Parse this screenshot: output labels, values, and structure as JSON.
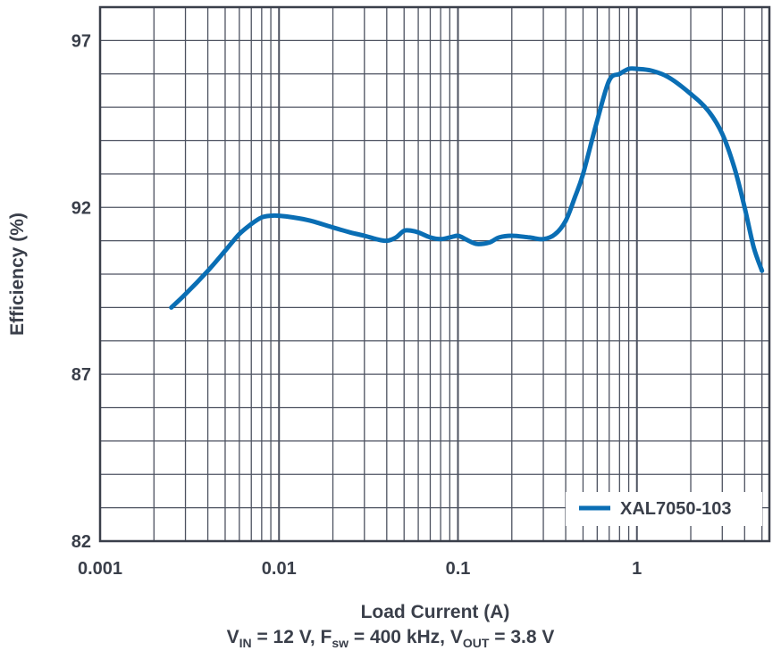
{
  "chart_data": {
    "type": "line",
    "xscale": "log",
    "xlim": [
      0.001,
      5.5
    ],
    "ylim": [
      82,
      98
    ],
    "xticks": [
      "0.001",
      "0.01",
      "0.1",
      "1"
    ],
    "yticks": [
      "82",
      "87",
      "92",
      "97"
    ],
    "xlabel": "Load Current (A)",
    "ylabel": "Efficiency (%)",
    "grid": true,
    "legend_position": "bottom-right",
    "series": [
      {
        "name": "XAL7050-103",
        "color": "#0a6eb4",
        "x": [
          0.0025,
          0.003,
          0.004,
          0.005,
          0.006,
          0.007,
          0.008,
          0.009,
          0.01,
          0.012,
          0.015,
          0.02,
          0.025,
          0.03,
          0.035,
          0.04,
          0.045,
          0.05,
          0.055,
          0.06,
          0.07,
          0.08,
          0.09,
          0.1,
          0.11,
          0.12,
          0.13,
          0.15,
          0.17,
          0.2,
          0.25,
          0.3,
          0.35,
          0.4,
          0.45,
          0.5,
          0.6,
          0.7,
          0.8,
          0.9,
          1.0,
          1.2,
          1.5,
          2.0,
          2.5,
          3.0,
          3.5,
          4.0,
          4.5,
          5.0
        ],
        "y": [
          89.0,
          89.4,
          90.1,
          90.7,
          91.2,
          91.5,
          91.7,
          91.75,
          91.75,
          91.7,
          91.6,
          91.4,
          91.25,
          91.15,
          91.05,
          91.0,
          91.1,
          91.3,
          91.3,
          91.25,
          91.1,
          91.05,
          91.1,
          91.15,
          91.05,
          90.95,
          90.9,
          90.95,
          91.1,
          91.15,
          91.1,
          91.05,
          91.2,
          91.6,
          92.3,
          93.0,
          94.6,
          95.8,
          96.0,
          96.15,
          96.15,
          96.1,
          95.9,
          95.4,
          94.9,
          94.2,
          93.2,
          92.0,
          90.8,
          90.1
        ]
      }
    ]
  },
  "conditions": {
    "vin_sym": "V",
    "vin_sub": "IN",
    "vin_val": " = 12 V, ",
    "fsw_sym": "F",
    "fsw_sub": "sw",
    "fsw_val": " = 400 kHz, ",
    "vout_sym": "V",
    "vout_sub": "OUT",
    "vout_val": " = 3.8 V"
  }
}
